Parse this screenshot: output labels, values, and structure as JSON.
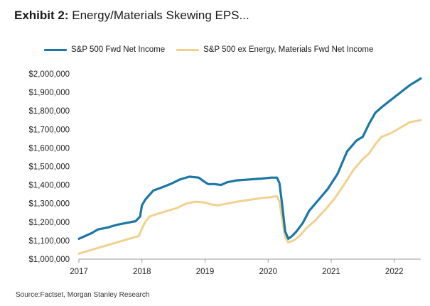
{
  "exhibit": {
    "lead": "Exhibit 2:",
    "title": "Energy/Materials Skewing EPS..."
  },
  "colors": {
    "series1": "#1a77a6",
    "series2": "#f1d18d",
    "axis": "#9a9a9a",
    "text": "#222222"
  },
  "source": "Source:Factset, Morgan Stanley Research",
  "chart_data": {
    "type": "line",
    "title": "Energy/Materials Skewing EPS...",
    "xlabel": "",
    "ylabel": "",
    "xlim": [
      2017.0,
      2022.42
    ],
    "ylim": [
      1000000,
      2000000
    ],
    "grid": false,
    "legend_position": "top",
    "y_ticks": [
      1000000,
      1100000,
      1200000,
      1300000,
      1400000,
      1500000,
      1600000,
      1700000,
      1800000,
      1900000,
      2000000
    ],
    "y_tick_labels": [
      "$1,000,000",
      "$1,100,000",
      "$1,200,000",
      "$1,300,000",
      "$1,400,000",
      "$1,500,000",
      "$1,600,000",
      "$1,700,000",
      "$1,800,000",
      "$1,900,000",
      "$2,000,000"
    ],
    "x_ticks": [
      2017,
      2018,
      2019,
      2020,
      2021,
      2022
    ],
    "x_tick_labels": [
      "2017",
      "2018",
      "2019",
      "2020",
      "2021",
      "2022"
    ],
    "series": [
      {
        "name": "S&P 500 Fwd Net Income",
        "color": "#1a77a6",
        "points": [
          [
            2017.0,
            1110000
          ],
          [
            2017.1,
            1125000
          ],
          [
            2017.2,
            1140000
          ],
          [
            2017.3,
            1160000
          ],
          [
            2017.45,
            1170000
          ],
          [
            2017.6,
            1185000
          ],
          [
            2017.75,
            1195000
          ],
          [
            2017.9,
            1205000
          ],
          [
            2017.97,
            1230000
          ],
          [
            2018.0,
            1290000
          ],
          [
            2018.05,
            1320000
          ],
          [
            2018.1,
            1340000
          ],
          [
            2018.18,
            1370000
          ],
          [
            2018.3,
            1385000
          ],
          [
            2018.45,
            1405000
          ],
          [
            2018.6,
            1430000
          ],
          [
            2018.75,
            1445000
          ],
          [
            2018.9,
            1440000
          ],
          [
            2018.98,
            1420000
          ],
          [
            2019.05,
            1405000
          ],
          [
            2019.15,
            1405000
          ],
          [
            2019.25,
            1400000
          ],
          [
            2019.35,
            1415000
          ],
          [
            2019.5,
            1425000
          ],
          [
            2019.7,
            1430000
          ],
          [
            2019.9,
            1435000
          ],
          [
            2020.05,
            1440000
          ],
          [
            2020.14,
            1440000
          ],
          [
            2020.18,
            1410000
          ],
          [
            2020.22,
            1300000
          ],
          [
            2020.27,
            1150000
          ],
          [
            2020.32,
            1110000
          ],
          [
            2020.38,
            1125000
          ],
          [
            2020.45,
            1150000
          ],
          [
            2020.55,
            1195000
          ],
          [
            2020.65,
            1260000
          ],
          [
            2020.8,
            1320000
          ],
          [
            2020.95,
            1380000
          ],
          [
            2021.1,
            1460000
          ],
          [
            2021.25,
            1580000
          ],
          [
            2021.4,
            1640000
          ],
          [
            2021.5,
            1660000
          ],
          [
            2021.6,
            1730000
          ],
          [
            2021.7,
            1790000
          ],
          [
            2021.8,
            1820000
          ],
          [
            2021.95,
            1860000
          ],
          [
            2022.1,
            1900000
          ],
          [
            2022.25,
            1940000
          ],
          [
            2022.35,
            1960000
          ],
          [
            2022.42,
            1975000
          ]
        ]
      },
      {
        "name": "S&P 500 ex Energy, Materials Fwd Net Income",
        "color": "#f1d18d",
        "points": [
          [
            2017.0,
            1030000
          ],
          [
            2017.1,
            1040000
          ],
          [
            2017.25,
            1055000
          ],
          [
            2017.4,
            1070000
          ],
          [
            2017.55,
            1085000
          ],
          [
            2017.7,
            1100000
          ],
          [
            2017.85,
            1115000
          ],
          [
            2017.95,
            1125000
          ],
          [
            2018.0,
            1165000
          ],
          [
            2018.05,
            1200000
          ],
          [
            2018.12,
            1230000
          ],
          [
            2018.25,
            1245000
          ],
          [
            2018.4,
            1260000
          ],
          [
            2018.55,
            1275000
          ],
          [
            2018.7,
            1300000
          ],
          [
            2018.85,
            1310000
          ],
          [
            2019.0,
            1305000
          ],
          [
            2019.1,
            1295000
          ],
          [
            2019.2,
            1290000
          ],
          [
            2019.35,
            1300000
          ],
          [
            2019.5,
            1310000
          ],
          [
            2019.7,
            1320000
          ],
          [
            2019.9,
            1330000
          ],
          [
            2020.05,
            1335000
          ],
          [
            2020.14,
            1340000
          ],
          [
            2020.18,
            1310000
          ],
          [
            2020.22,
            1220000
          ],
          [
            2020.27,
            1120000
          ],
          [
            2020.32,
            1090000
          ],
          [
            2020.4,
            1100000
          ],
          [
            2020.5,
            1125000
          ],
          [
            2020.6,
            1165000
          ],
          [
            2020.75,
            1210000
          ],
          [
            2020.9,
            1265000
          ],
          [
            2021.05,
            1325000
          ],
          [
            2021.2,
            1400000
          ],
          [
            2021.35,
            1480000
          ],
          [
            2021.5,
            1540000
          ],
          [
            2021.6,
            1570000
          ],
          [
            2021.7,
            1620000
          ],
          [
            2021.8,
            1660000
          ],
          [
            2021.95,
            1680000
          ],
          [
            2022.1,
            1710000
          ],
          [
            2022.25,
            1740000
          ],
          [
            2022.42,
            1750000
          ]
        ]
      }
    ]
  }
}
